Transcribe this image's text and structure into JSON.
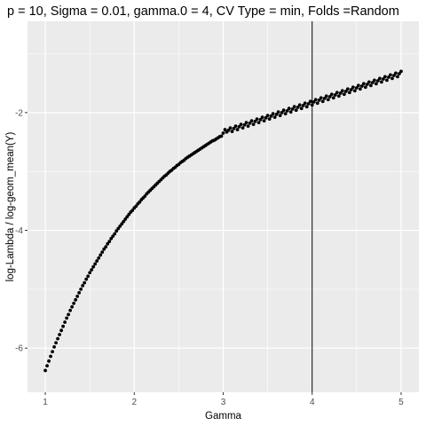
{
  "chart_data": {
    "type": "scatter",
    "title": "p = 10, Sigma = 0.01, gamma.0 = 4, CV Type = min, Folds =Random",
    "xlabel": "Gamma",
    "ylabel": "log-Lambda / log-geom_mean(Y)",
    "xlim": [
      0.8,
      5.2
    ],
    "ylim": [
      -6.75,
      -0.45
    ],
    "x_ticks": [
      1,
      2,
      3,
      4,
      5
    ],
    "x_tick_labels": [
      "1",
      "2",
      "3",
      "4",
      "5"
    ],
    "y_ticks": [
      -6,
      -4,
      -2
    ],
    "y_tick_labels": [
      "-6",
      "-4",
      "-2"
    ],
    "grid": true,
    "legend": "none",
    "background": "#ebebeb",
    "grid_color": "#ffffff",
    "point_color": "#000000",
    "vline": {
      "x": 4,
      "color": "#000000"
    },
    "series": [
      {
        "points": [
          [
            1.0,
            -6.38
          ],
          [
            1.02,
            -6.3
          ],
          [
            1.04,
            -6.22
          ],
          [
            1.06,
            -6.14
          ],
          [
            1.08,
            -6.06
          ],
          [
            1.1,
            -5.98
          ],
          [
            1.12,
            -5.91
          ],
          [
            1.14,
            -5.84
          ],
          [
            1.16,
            -5.77
          ],
          [
            1.18,
            -5.7
          ],
          [
            1.2,
            -5.63
          ],
          [
            1.22,
            -5.56
          ],
          [
            1.24,
            -5.49
          ],
          [
            1.26,
            -5.43
          ],
          [
            1.28,
            -5.36
          ],
          [
            1.3,
            -5.3
          ],
          [
            1.32,
            -5.24
          ],
          [
            1.34,
            -5.18
          ],
          [
            1.36,
            -5.12
          ],
          [
            1.38,
            -5.06
          ],
          [
            1.4,
            -5.0
          ],
          [
            1.42,
            -4.94
          ],
          [
            1.44,
            -4.89
          ],
          [
            1.46,
            -4.83
          ],
          [
            1.48,
            -4.78
          ],
          [
            1.5,
            -4.72
          ],
          [
            1.52,
            -4.67
          ],
          [
            1.54,
            -4.62
          ],
          [
            1.56,
            -4.57
          ],
          [
            1.58,
            -4.52
          ],
          [
            1.6,
            -4.47
          ],
          [
            1.62,
            -4.42
          ],
          [
            1.64,
            -4.37
          ],
          [
            1.66,
            -4.32
          ],
          [
            1.68,
            -4.28
          ],
          [
            1.7,
            -4.23
          ],
          [
            1.72,
            -4.19
          ],
          [
            1.74,
            -4.14
          ],
          [
            1.76,
            -4.1
          ],
          [
            1.78,
            -4.06
          ],
          [
            1.8,
            -4.01
          ],
          [
            1.82,
            -3.97
          ],
          [
            1.84,
            -3.93
          ],
          [
            1.86,
            -3.89
          ],
          [
            1.88,
            -3.85
          ],
          [
            1.9,
            -3.81
          ],
          [
            1.92,
            -3.77
          ],
          [
            1.94,
            -3.73
          ],
          [
            1.96,
            -3.69
          ],
          [
            1.98,
            -3.66
          ],
          [
            2.0,
            -3.62
          ],
          [
            2.02,
            -3.59
          ],
          [
            2.04,
            -3.55
          ],
          [
            2.06,
            -3.52
          ],
          [
            2.08,
            -3.48
          ],
          [
            2.1,
            -3.45
          ],
          [
            2.12,
            -3.42
          ],
          [
            2.14,
            -3.38
          ],
          [
            2.16,
            -3.35
          ],
          [
            2.18,
            -3.32
          ],
          [
            2.2,
            -3.29
          ],
          [
            2.22,
            -3.26
          ],
          [
            2.24,
            -3.23
          ],
          [
            2.26,
            -3.2
          ],
          [
            2.28,
            -3.17
          ],
          [
            2.3,
            -3.14
          ],
          [
            2.32,
            -3.11
          ],
          [
            2.34,
            -3.08
          ],
          [
            2.36,
            -3.06
          ],
          [
            2.38,
            -3.03
          ],
          [
            2.4,
            -3.0
          ],
          [
            2.42,
            -2.98
          ],
          [
            2.44,
            -2.95
          ],
          [
            2.46,
            -2.93
          ],
          [
            2.48,
            -2.9
          ],
          [
            2.5,
            -2.88
          ],
          [
            2.52,
            -2.85
          ],
          [
            2.54,
            -2.83
          ],
          [
            2.56,
            -2.81
          ],
          [
            2.58,
            -2.78
          ],
          [
            2.6,
            -2.76
          ],
          [
            2.62,
            -2.74
          ],
          [
            2.64,
            -2.72
          ],
          [
            2.66,
            -2.7
          ],
          [
            2.68,
            -2.68
          ],
          [
            2.7,
            -2.66
          ],
          [
            2.72,
            -2.64
          ],
          [
            2.74,
            -2.62
          ],
          [
            2.76,
            -2.6
          ],
          [
            2.78,
            -2.58
          ],
          [
            2.8,
            -2.56
          ],
          [
            2.82,
            -2.54
          ],
          [
            2.84,
            -2.52
          ],
          [
            2.86,
            -2.5
          ],
          [
            2.88,
            -2.48
          ],
          [
            2.9,
            -2.47
          ],
          [
            2.92,
            -2.45
          ],
          [
            2.94,
            -2.43
          ],
          [
            2.96,
            -2.41
          ],
          [
            2.98,
            -2.4
          ],
          [
            3.0,
            -2.35
          ],
          [
            3.02,
            -2.29
          ],
          [
            3.04,
            -2.33
          ],
          [
            3.06,
            -2.3
          ],
          [
            3.08,
            -2.26
          ],
          [
            3.1,
            -2.32
          ],
          [
            3.12,
            -2.27
          ],
          [
            3.14,
            -2.23
          ],
          [
            3.16,
            -2.29
          ],
          [
            3.18,
            -2.24
          ],
          [
            3.2,
            -2.2
          ],
          [
            3.22,
            -2.26
          ],
          [
            3.24,
            -2.21
          ],
          [
            3.26,
            -2.17
          ],
          [
            3.28,
            -2.23
          ],
          [
            3.3,
            -2.18
          ],
          [
            3.32,
            -2.14
          ],
          [
            3.34,
            -2.2
          ],
          [
            3.36,
            -2.15
          ],
          [
            3.38,
            -2.11
          ],
          [
            3.4,
            -2.17
          ],
          [
            3.42,
            -2.12
          ],
          [
            3.44,
            -2.08
          ],
          [
            3.46,
            -2.14
          ],
          [
            3.48,
            -2.09
          ],
          [
            3.5,
            -2.05
          ],
          [
            3.52,
            -2.11
          ],
          [
            3.54,
            -2.06
          ],
          [
            3.56,
            -2.02
          ],
          [
            3.58,
            -2.08
          ],
          [
            3.6,
            -2.03
          ],
          [
            3.62,
            -1.99
          ],
          [
            3.64,
            -2.05
          ],
          [
            3.66,
            -2.0
          ],
          [
            3.68,
            -1.96
          ],
          [
            3.7,
            -2.02
          ],
          [
            3.72,
            -1.97
          ],
          [
            3.74,
            -1.93
          ],
          [
            3.76,
            -1.99
          ],
          [
            3.78,
            -1.94
          ],
          [
            3.8,
            -1.9
          ],
          [
            3.82,
            -1.96
          ],
          [
            3.84,
            -1.91
          ],
          [
            3.86,
            -1.87
          ],
          [
            3.88,
            -1.93
          ],
          [
            3.9,
            -1.88
          ],
          [
            3.92,
            -1.84
          ],
          [
            3.94,
            -1.9
          ],
          [
            3.96,
            -1.85
          ],
          [
            3.98,
            -1.81
          ],
          [
            4.0,
            -1.87
          ],
          [
            4.02,
            -1.82
          ],
          [
            4.04,
            -1.78
          ],
          [
            4.06,
            -1.84
          ],
          [
            4.08,
            -1.79
          ],
          [
            4.1,
            -1.75
          ],
          [
            4.12,
            -1.81
          ],
          [
            4.14,
            -1.76
          ],
          [
            4.16,
            -1.72
          ],
          [
            4.18,
            -1.78
          ],
          [
            4.2,
            -1.73
          ],
          [
            4.22,
            -1.69
          ],
          [
            4.24,
            -1.75
          ],
          [
            4.26,
            -1.7
          ],
          [
            4.28,
            -1.66
          ],
          [
            4.3,
            -1.72
          ],
          [
            4.32,
            -1.67
          ],
          [
            4.34,
            -1.63
          ],
          [
            4.36,
            -1.69
          ],
          [
            4.38,
            -1.64
          ],
          [
            4.4,
            -1.6
          ],
          [
            4.42,
            -1.66
          ],
          [
            4.44,
            -1.61
          ],
          [
            4.46,
            -1.57
          ],
          [
            4.48,
            -1.63
          ],
          [
            4.5,
            -1.58
          ],
          [
            4.52,
            -1.54
          ],
          [
            4.54,
            -1.6
          ],
          [
            4.56,
            -1.55
          ],
          [
            4.58,
            -1.51
          ],
          [
            4.6,
            -1.57
          ],
          [
            4.62,
            -1.52
          ],
          [
            4.64,
            -1.48
          ],
          [
            4.66,
            -1.54
          ],
          [
            4.68,
            -1.49
          ],
          [
            4.7,
            -1.45
          ],
          [
            4.72,
            -1.51
          ],
          [
            4.74,
            -1.46
          ],
          [
            4.76,
            -1.42
          ],
          [
            4.78,
            -1.48
          ],
          [
            4.8,
            -1.43
          ],
          [
            4.82,
            -1.39
          ],
          [
            4.84,
            -1.45
          ],
          [
            4.86,
            -1.4
          ],
          [
            4.88,
            -1.36
          ],
          [
            4.9,
            -1.42
          ],
          [
            4.92,
            -1.37
          ],
          [
            4.94,
            -1.33
          ],
          [
            4.96,
            -1.39
          ],
          [
            4.98,
            -1.34
          ],
          [
            5.0,
            -1.3
          ]
        ]
      }
    ]
  }
}
